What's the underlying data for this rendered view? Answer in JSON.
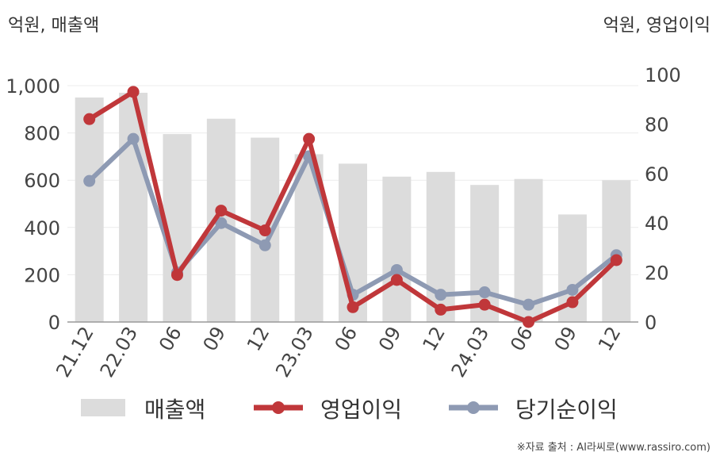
{
  "chart_data": {
    "type": "bar+line",
    "units": {
      "left": "억원, 매출액",
      "right": "억원, 영업이익"
    },
    "categories": [
      "21.12",
      "22.03",
      "06",
      "09",
      "12",
      "23.03",
      "06",
      "09",
      "12",
      "24.03",
      "06",
      "09",
      "12"
    ],
    "left_axis": {
      "ylim": [
        0,
        1000
      ],
      "ticks": [
        "0",
        "200",
        "400",
        "600",
        "800",
        "1,000"
      ]
    },
    "right_axis": {
      "ylim": [
        0,
        100
      ],
      "ticks": [
        "0",
        "20",
        "40",
        "60",
        "80",
        "100"
      ]
    },
    "series": [
      {
        "name": "매출액",
        "type": "bar",
        "axis": "left",
        "color": "#dcdcdc",
        "values": [
          950,
          970,
          795,
          860,
          780,
          710,
          670,
          615,
          635,
          580,
          605,
          455,
          600
        ]
      },
      {
        "name": "영업이익",
        "type": "line",
        "axis": "right",
        "color": "#c0373a",
        "values": [
          82,
          93,
          19,
          45,
          37,
          74,
          6,
          17,
          5,
          7,
          0,
          8,
          25
        ]
      },
      {
        "name": "당기순이익",
        "type": "line",
        "axis": "right",
        "color": "#8e9ab3",
        "values": [
          57,
          74,
          20,
          40,
          31,
          67,
          11,
          21,
          11,
          12,
          7,
          13,
          27
        ]
      }
    ],
    "grid": true,
    "legend_position": "bottom"
  },
  "source": "※자료 출처 : AI라씨로(www.rassiro.com)"
}
